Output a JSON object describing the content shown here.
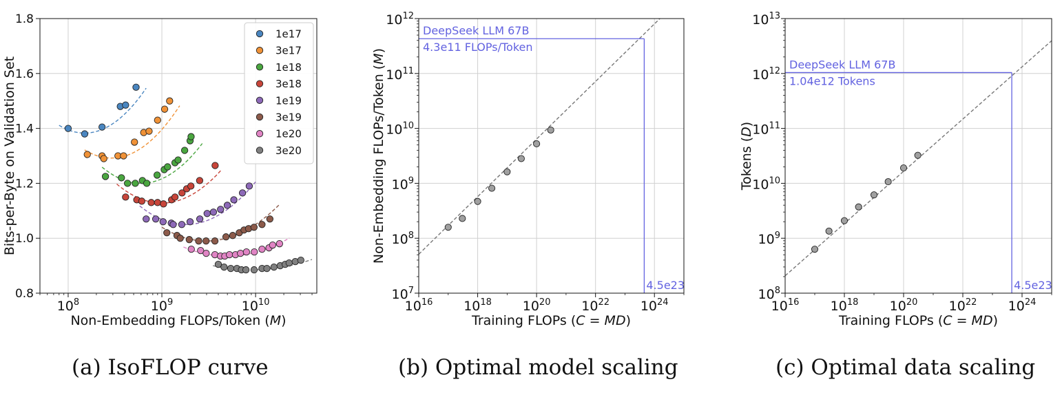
{
  "figure": {
    "captions": [
      {
        "letter": "(a)",
        "text": "IsoFLOP curve"
      },
      {
        "letter": "(b)",
        "text": "Optimal model scaling"
      },
      {
        "letter": "(c)",
        "text": "Optimal data scaling"
      }
    ]
  },
  "chart_data": [
    {
      "type": "scatter",
      "title": "",
      "xlabel": "Non-Embedding FLOPs/Token (",
      "xlabel_var": "M",
      "xlabel_end": ")",
      "ylabel": "Bits-per-Byte on Validation Set",
      "xscale": "log",
      "xlim": [
        50000000,
        45000000000
      ],
      "ylim": [
        0.8,
        1.8
      ],
      "xticks": [
        {
          "value": 100000000,
          "exp": "8"
        },
        {
          "value": 1000000000,
          "exp": "9"
        },
        {
          "value": 10000000000,
          "exp": "10"
        }
      ],
      "yticks": [
        {
          "value": 0.8,
          "label": "0.8"
        },
        {
          "value": 1.0,
          "label": "1.0"
        },
        {
          "value": 1.2,
          "label": "1.2"
        },
        {
          "value": 1.4,
          "label": "1.4"
        },
        {
          "value": 1.6,
          "label": "1.6"
        },
        {
          "value": 1.8,
          "label": "1.8"
        }
      ],
      "grid": true,
      "legend": "top-right",
      "series": [
        {
          "name": "1e17",
          "color": "#4a86c0",
          "points": [
            [
              100000000,
              1.4
            ],
            [
              150000000,
              1.38
            ],
            [
              230000000,
              1.405
            ],
            [
              360000000,
              1.48
            ],
            [
              410000000,
              1.485
            ],
            [
              530000000,
              1.55
            ]
          ],
          "curve": {
            "a": 1.383,
            "b": 0.38,
            "x0": 150000000,
            "xmin": 80000000,
            "xmax": 680000000
          }
        },
        {
          "name": "3e17",
          "color": "#f09237",
          "points": [
            [
              160000000,
              1.305
            ],
            [
              230000000,
              1.3
            ],
            [
              240000000,
              1.29
            ],
            [
              340000000,
              1.3
            ],
            [
              390000000,
              1.3
            ],
            [
              510000000,
              1.35
            ],
            [
              640000000,
              1.385
            ],
            [
              730000000,
              1.39
            ],
            [
              900000000,
              1.43
            ],
            [
              1070000000,
              1.47
            ],
            [
              1210000000,
              1.5
            ]
          ],
          "curve": {
            "a": 1.292,
            "b": 0.36,
            "x0": 290000000,
            "xmin": 150000000,
            "xmax": 1550000000
          }
        },
        {
          "name": "1e18",
          "color": "#4aa640",
          "points": [
            [
              250000000,
              1.225
            ],
            [
              370000000,
              1.22
            ],
            [
              430000000,
              1.2
            ],
            [
              520000000,
              1.2
            ],
            [
              620000000,
              1.21
            ],
            [
              690000000,
              1.2
            ],
            [
              890000000,
              1.23
            ],
            [
              1060000000,
              1.25
            ],
            [
              1150000000,
              1.26
            ],
            [
              1380000000,
              1.275
            ],
            [
              1490000000,
              1.285
            ],
            [
              1750000000,
              1.32
            ],
            [
              2000000000,
              1.355
            ],
            [
              2050000000,
              1.37
            ]
          ],
          "curve": {
            "a": 1.2,
            "b": 0.34,
            "x0": 600000000,
            "xmin": 230000000,
            "xmax": 2700000000
          }
        },
        {
          "name": "3e18",
          "color": "#c8453a",
          "points": [
            [
              410000000,
              1.15
            ],
            [
              540000000,
              1.14
            ],
            [
              610000000,
              1.135
            ],
            [
              770000000,
              1.13
            ],
            [
              900000000,
              1.13
            ],
            [
              1040000000,
              1.125
            ],
            [
              1270000000,
              1.14
            ],
            [
              1380000000,
              1.15
            ],
            [
              1640000000,
              1.165
            ],
            [
              1840000000,
              1.18
            ],
            [
              2040000000,
              1.19
            ],
            [
              2530000000,
              1.21
            ],
            [
              3700000000,
              1.265
            ]
          ],
          "curve": {
            "a": 1.128,
            "b": 0.3,
            "x0": 1000000000,
            "xmin": 330000000,
            "xmax": 4300000000
          }
        },
        {
          "name": "1e19",
          "color": "#8d69b8",
          "points": [
            [
              680000000,
              1.07
            ],
            [
              860000000,
              1.07
            ],
            [
              1030000000,
              1.06
            ],
            [
              1260000000,
              1.055
            ],
            [
              1320000000,
              1.05
            ],
            [
              1630000000,
              1.05
            ],
            [
              2000000000,
              1.06
            ],
            [
              2540000000,
              1.07
            ],
            [
              3040000000,
              1.09
            ],
            [
              3550000000,
              1.095
            ],
            [
              4230000000,
              1.105
            ],
            [
              4990000000,
              1.12
            ],
            [
              5860000000,
              1.14
            ],
            [
              7250000000,
              1.165
            ],
            [
              8560000000,
              1.19
            ]
          ],
          "curve": {
            "a": 1.05,
            "b": 0.28,
            "x0": 1800000000,
            "xmin": 580000000,
            "xmax": 10000000000
          }
        },
        {
          "name": "3e19",
          "color": "#8c5a4a",
          "points": [
            [
              1130000000,
              1.02
            ],
            [
              1450000000,
              1.01
            ],
            [
              1570000000,
              1.0
            ],
            [
              1960000000,
              0.995
            ],
            [
              2470000000,
              0.99
            ],
            [
              2960000000,
              0.99
            ],
            [
              3680000000,
              0.99
            ],
            [
              4830000000,
              1.005
            ],
            [
              5700000000,
              1.01
            ],
            [
              6700000000,
              1.02
            ],
            [
              7530000000,
              1.03
            ],
            [
              8420000000,
              1.035
            ],
            [
              9620000000,
              1.04
            ],
            [
              11700000000,
              1.05
            ],
            [
              14200000000,
              1.07
            ]
          ],
          "curve": {
            "a": 0.99,
            "b": 0.22,
            "x0": 3000000000,
            "xmin": 1000000000,
            "xmax": 18000000000
          }
        },
        {
          "name": "1e20",
          "color": "#e084c4",
          "points": [
            [
              2060000000,
              0.96
            ],
            [
              2590000000,
              0.955
            ],
            [
              2970000000,
              0.945
            ],
            [
              3680000000,
              0.94
            ],
            [
              4220000000,
              0.935
            ],
            [
              4690000000,
              0.935
            ],
            [
              5260000000,
              0.94
            ],
            [
              6100000000,
              0.94
            ],
            [
              6900000000,
              0.945
            ],
            [
              7990000000,
              0.95
            ],
            [
              9690000000,
              0.95
            ],
            [
              11700000000,
              0.96
            ],
            [
              13900000000,
              0.965
            ],
            [
              15200000000,
              0.975
            ],
            [
              18000000000,
              0.98
            ]
          ],
          "curve": {
            "a": 0.935,
            "b": 0.15,
            "x0": 5000000000,
            "xmin": 1700000000,
            "xmax": 23000000000
          }
        },
        {
          "name": "3e20",
          "color": "#808080",
          "points": [
            [
              4000000000,
              0.905
            ],
            [
              4610000000,
              0.895
            ],
            [
              5430000000,
              0.89
            ],
            [
              6320000000,
              0.89
            ],
            [
              7060000000,
              0.885
            ],
            [
              7890000000,
              0.885
            ],
            [
              9640000000,
              0.885
            ],
            [
              11700000000,
              0.89
            ],
            [
              13200000000,
              0.89
            ],
            [
              15700000000,
              0.895
            ],
            [
              18300000000,
              0.9
            ],
            [
              20700000000,
              0.905
            ],
            [
              22800000000,
              0.91
            ],
            [
              26500000000,
              0.915
            ],
            [
              30400000000,
              0.92
            ]
          ],
          "curve": {
            "a": 0.885,
            "b": 0.09,
            "x0": 9000000000,
            "xmin": 3500000000,
            "xmax": 40000000000
          }
        }
      ]
    },
    {
      "type": "scatter",
      "title": "",
      "xlabel": "Training FLOPs (",
      "xlabel_var": "C = MD",
      "xlabel_end": ")",
      "ylabel": "Non-Embedding FLOPs/Token (",
      "ylabel_var": "M",
      "ylabel_end": ")",
      "xscale": "log",
      "yscale": "log",
      "xlim_exp": [
        16,
        25
      ],
      "ylim_exp": [
        7,
        12
      ],
      "xticks": [
        "16",
        "18",
        "20",
        "22",
        "24"
      ],
      "yticks": [
        "7",
        "8",
        "9",
        "10",
        "11",
        "12"
      ],
      "grid": true,
      "points_log10": [
        [
          17.0,
          8.2
        ],
        [
          17.48,
          8.36
        ],
        [
          18.0,
          8.67
        ],
        [
          18.48,
          8.91
        ],
        [
          19.0,
          9.21
        ],
        [
          19.48,
          9.45
        ],
        [
          20.0,
          9.72
        ],
        [
          20.48,
          9.97
        ]
      ],
      "fit_log10": {
        "slope": 0.5243,
        "intercept": -0.68
      },
      "annotation": {
        "x": 4.5e+23,
        "y": 430000000000.0,
        "title": "DeepSeek LLM 67B",
        "value_label": "4.3e11 FLOPs/Token",
        "x_label": "4.5e23",
        "color": "#6262e0"
      }
    },
    {
      "type": "scatter",
      "title": "",
      "xlabel": "Training FLOPs (",
      "xlabel_var": "C = MD",
      "xlabel_end": ")",
      "ylabel": "Tokens (",
      "ylabel_var": "D",
      "ylabel_end": ")",
      "xscale": "log",
      "yscale": "log",
      "xlim_exp": [
        16,
        25
      ],
      "ylim_exp": [
        8,
        13
      ],
      "xticks": [
        "16",
        "18",
        "20",
        "22",
        "24"
      ],
      "yticks": [
        "8",
        "9",
        "10",
        "11",
        "12",
        "13"
      ],
      "grid": true,
      "points_log10": [
        [
          17.0,
          8.8
        ],
        [
          17.48,
          9.13
        ],
        [
          18.0,
          9.32
        ],
        [
          18.48,
          9.57
        ],
        [
          19.0,
          9.79
        ],
        [
          19.48,
          10.03
        ],
        [
          20.0,
          10.28
        ],
        [
          20.48,
          10.51
        ]
      ],
      "fit_log10": {
        "slope": 0.4757,
        "intercept": 0.705
      },
      "annotation": {
        "x": 4.5e+23,
        "y": 1040000000000.0,
        "title": "DeepSeek LLM 67B",
        "value_label": "1.04e12 Tokens",
        "x_label": "4.5e23",
        "color": "#6262e0"
      }
    }
  ]
}
